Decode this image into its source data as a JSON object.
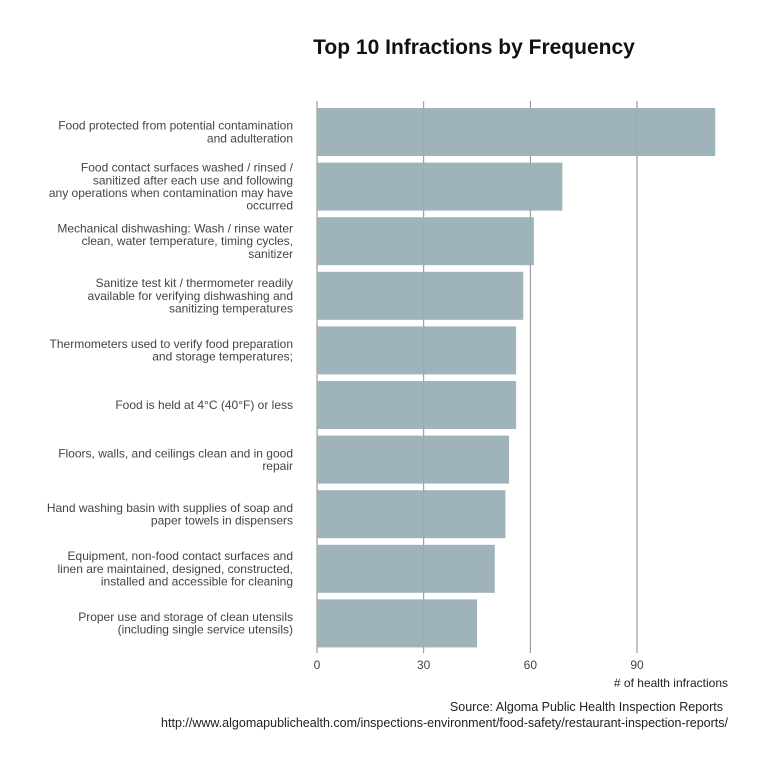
{
  "chart_data": {
    "type": "bar",
    "orientation": "horizontal",
    "title": "Top 10 Infractions by Frequency",
    "xlabel": "# of health infractions",
    "ylabel": "",
    "xlim": [
      0,
      117
    ],
    "xticks": [
      0,
      30,
      60,
      90
    ],
    "grid": "vertical major lines",
    "bar_color": "#9aafb6",
    "categories": [
      [
        "Food protected from potential contamination",
        "and adulteration"
      ],
      [
        "Food contact surfaces washed / rinsed /",
        "sanitized after each use and following",
        "any operations when contamination may have",
        "occurred"
      ],
      [
        "Mechanical dishwashing: Wash / rinse water",
        "clean, water temperature, timing cycles,",
        "sanitizer"
      ],
      [
        "Sanitize test kit / thermometer readily",
        "available for verifying dishwashing and",
        "sanitizing temperatures"
      ],
      [
        "Thermometers used to verify food preparation",
        "and storage temperatures;"
      ],
      [
        "Food is held at 4°C (40°F) or less"
      ],
      [
        "Floors, walls, and ceilings clean and in good",
        "repair"
      ],
      [
        "Hand washing basin with supplies of soap and",
        "paper towels in dispensers"
      ],
      [
        "Equipment, non-food contact surfaces and",
        "linen are maintained, designed, constructed,",
        "installed and accessible for cleaning"
      ],
      [
        "Proper use and storage of clean utensils",
        "(including single service utensils)"
      ]
    ],
    "values": [
      112,
      69,
      61,
      58,
      56,
      56,
      54,
      53,
      50,
      45
    ]
  },
  "caption": {
    "source": "Source: Algoma Public Health Inspection Reports",
    "url": "http://www.algomapublichealth.com/inspections-environment/food-safety/restaurant-inspection-reports/"
  }
}
